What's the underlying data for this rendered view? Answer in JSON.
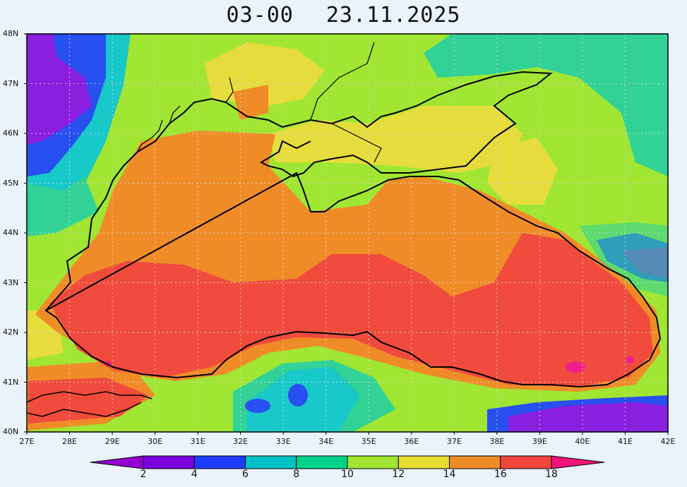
{
  "header": {
    "forecast_step": "03-00",
    "date": "23.11.2025"
  },
  "axes": {
    "lat_labels": [
      "48N",
      "47N",
      "46N",
      "45N",
      "44N",
      "43N",
      "42N",
      "41N",
      "40N"
    ],
    "lon_labels": [
      "27E",
      "28E",
      "29E",
      "30E",
      "31E",
      "32E",
      "33E",
      "34E",
      "35E",
      "36E",
      "37E",
      "38E",
      "39E",
      "40E",
      "41E",
      "42E"
    ]
  },
  "colorbar": {
    "ticks": [
      "2",
      "4",
      "6",
      "8",
      "10",
      "12",
      "14",
      "16",
      "18"
    ],
    "bins": [
      "#9400d3",
      "#7a00e0",
      "#1e3cff",
      "#00c3c8",
      "#00d28c",
      "#a0e632",
      "#e6dc32",
      "#f08c28",
      "#f0463c",
      "#f0147a"
    ]
  },
  "palette": {
    "purple": "#8a1fe0",
    "blue": "#2850f0",
    "cyan": "#19c8c8",
    "green": "#32d296",
    "lime": "#a0e632",
    "yellow": "#e6dc3c",
    "orange": "#f08c28",
    "red": "#f04b3c",
    "magenta": "#f01e8c"
  }
}
